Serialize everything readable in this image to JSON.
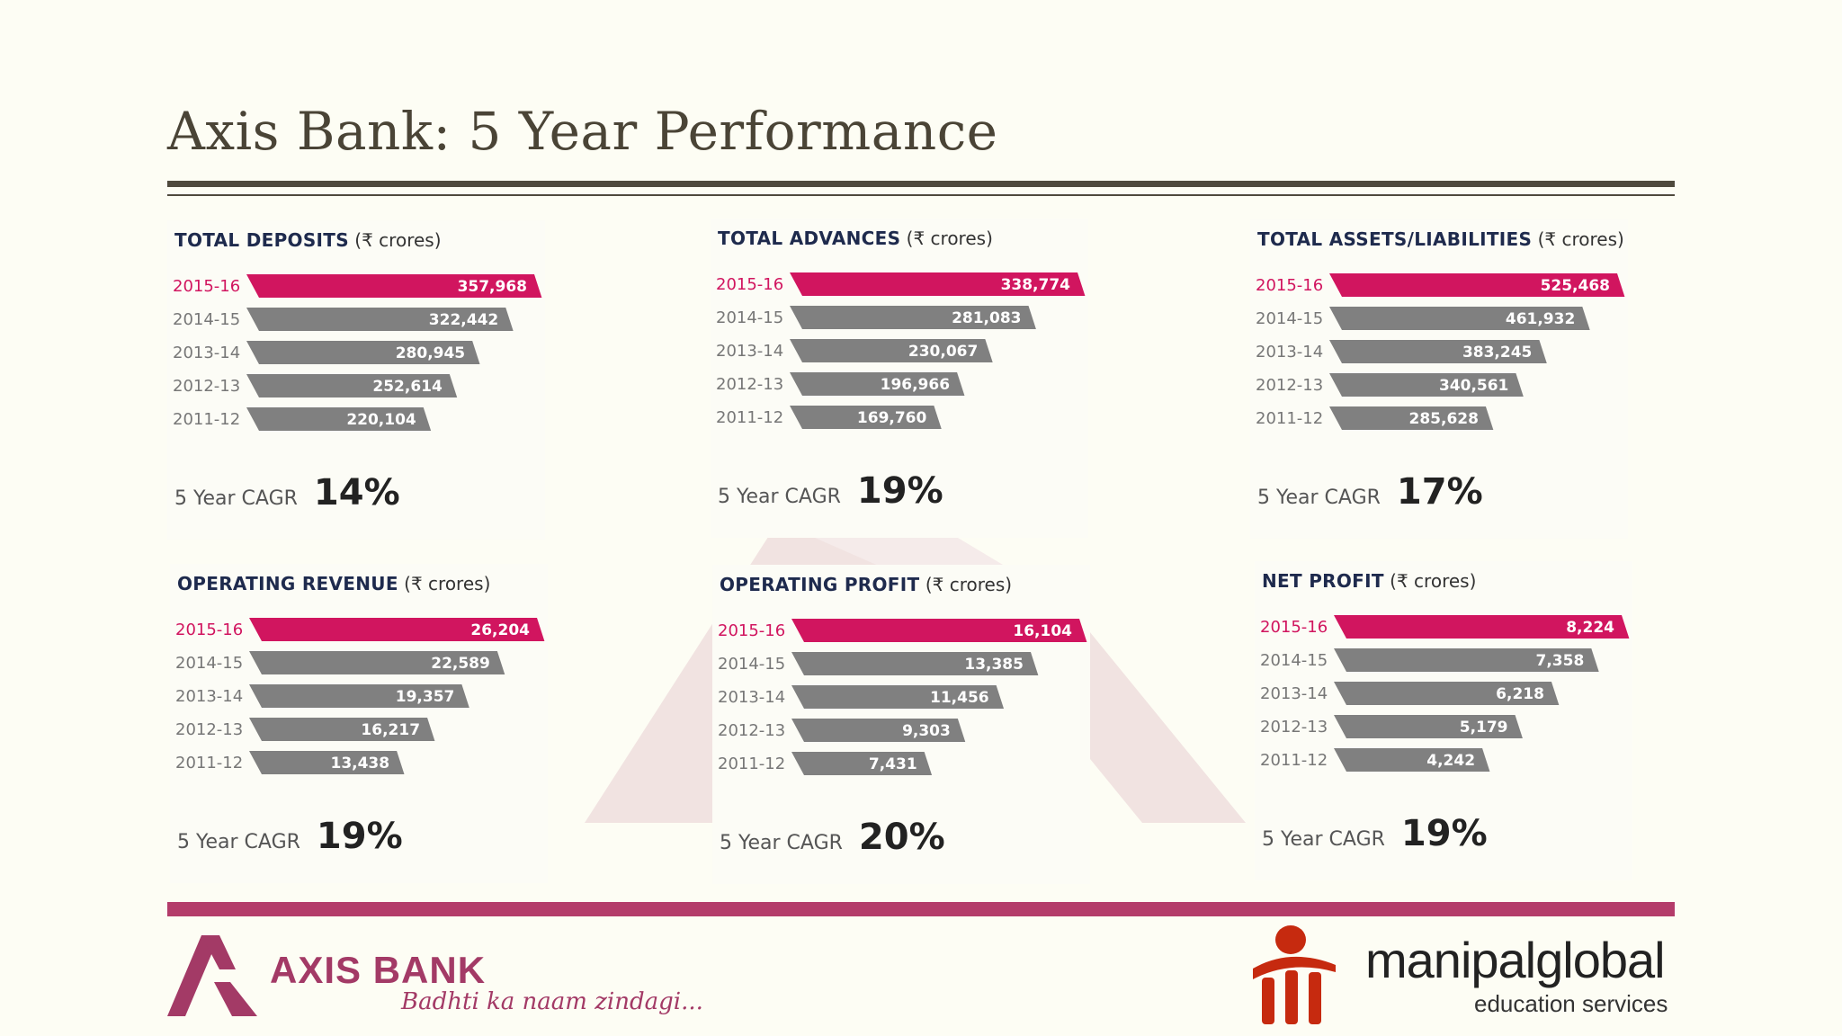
{
  "title": "Axis Bank: 5 Year Performance",
  "cagr_label": "5 Year CAGR",
  "colors": {
    "highlight": "#d1155f",
    "bar": "#808080",
    "accent_bar": "#b43c6a",
    "title": "#1e2a4d"
  },
  "chart_data": [
    {
      "type": "bar",
      "title": "TOTAL DEPOSITS",
      "unit": "(₹ crores)",
      "categories": [
        "2015-16",
        "2014-15",
        "2013-14",
        "2012-13",
        "2011-12"
      ],
      "values": [
        357968,
        322442,
        280945,
        252614,
        220104
      ],
      "value_labels": [
        "357,968",
        "322,442",
        "280,945",
        "252,614",
        "220,104"
      ],
      "cagr": "14%"
    },
    {
      "type": "bar",
      "title": "TOTAL ADVANCES",
      "unit": "(₹ crores)",
      "categories": [
        "2015-16",
        "2014-15",
        "2013-14",
        "2012-13",
        "2011-12"
      ],
      "values": [
        338774,
        281083,
        230067,
        196966,
        169760
      ],
      "value_labels": [
        "338,774",
        "281,083",
        "230,067",
        "196,966",
        "169,760"
      ],
      "cagr": "19%"
    },
    {
      "type": "bar",
      "title": "TOTAL ASSETS/LIABILITIES",
      "unit": "(₹ crores)",
      "categories": [
        "2015-16",
        "2014-15",
        "2013-14",
        "2012-13",
        "2011-12"
      ],
      "values": [
        525468,
        461932,
        383245,
        340561,
        285628
      ],
      "value_labels": [
        "525,468",
        "461,932",
        "383,245",
        "340,561",
        "285,628"
      ],
      "cagr": "17%"
    },
    {
      "type": "bar",
      "title": "OPERATING REVENUE",
      "unit": "(₹ crores)",
      "categories": [
        "2015-16",
        "2014-15",
        "2013-14",
        "2012-13",
        "2011-12"
      ],
      "values": [
        26204,
        22589,
        19357,
        16217,
        13438
      ],
      "value_labels": [
        "26,204",
        "22,589",
        "19,357",
        "16,217",
        "13,438"
      ],
      "cagr": "19%"
    },
    {
      "type": "bar",
      "title": "OPERATING PROFIT",
      "unit": "(₹ crores)",
      "categories": [
        "2015-16",
        "2014-15",
        "2013-14",
        "2012-13",
        "2011-12"
      ],
      "values": [
        16104,
        13385,
        11456,
        9303,
        7431
      ],
      "value_labels": [
        "16,104",
        "13,385",
        "11,456",
        "9,303",
        "7,431"
      ],
      "cagr": "20%"
    },
    {
      "type": "bar",
      "title": "NET PROFIT",
      "unit": "(₹ crores)",
      "categories": [
        "2015-16",
        "2014-15",
        "2013-14",
        "2012-13",
        "2011-12"
      ],
      "values": [
        8224,
        7358,
        6218,
        5179,
        4242
      ],
      "value_labels": [
        "8,224",
        "7,358",
        "6,218",
        "5,179",
        "4,242"
      ],
      "cagr": "19%"
    }
  ],
  "logos": {
    "axis": {
      "name": "AXIS BANK",
      "tagline": "Badhti ka naam zindagi..."
    },
    "manipal": {
      "name": "manipalglobal",
      "sub": "education services"
    }
  }
}
